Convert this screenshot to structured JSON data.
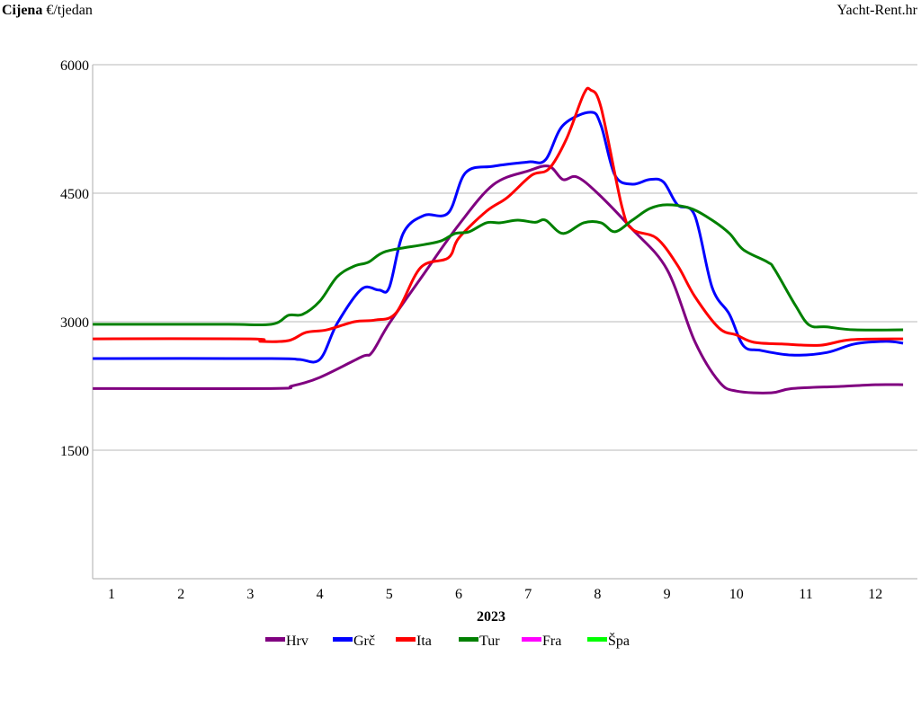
{
  "chart_data": {
    "type": "line",
    "ylabel_bold": "Cijena",
    "ylabel_unit": "€/tjedan",
    "watermark": "Yacht-Rent.hr",
    "xlabel": "2023",
    "x_ticks": [
      "1",
      "2",
      "3",
      "4",
      "5",
      "6",
      "7",
      "8",
      "9",
      "10",
      "11",
      "12"
    ],
    "y_ticks": [
      1500,
      3000,
      4500,
      6000
    ],
    "ylim": [
      0,
      6000
    ],
    "xlim": [
      0.73,
      12.6
    ],
    "grid": "horizontal",
    "legend_position": "bottom",
    "series": [
      {
        "name": "Hrv",
        "color": "#800080",
        "points": [
          [
            0.73,
            2220
          ],
          [
            3.3,
            2220
          ],
          [
            3.6,
            2250
          ],
          [
            4.0,
            2350
          ],
          [
            4.6,
            2590
          ],
          [
            4.75,
            2640
          ],
          [
            5.0,
            2980
          ],
          [
            5.5,
            3560
          ],
          [
            6.0,
            4130
          ],
          [
            6.5,
            4600
          ],
          [
            7.0,
            4760
          ],
          [
            7.3,
            4815
          ],
          [
            7.5,
            4660
          ],
          [
            7.7,
            4690
          ],
          [
            8.0,
            4500
          ],
          [
            8.5,
            4080
          ],
          [
            9.0,
            3610
          ],
          [
            9.4,
            2770
          ],
          [
            9.75,
            2300
          ],
          [
            10.0,
            2190
          ],
          [
            10.5,
            2170
          ],
          [
            10.8,
            2220
          ],
          [
            11.5,
            2245
          ],
          [
            12.0,
            2265
          ],
          [
            12.4,
            2265
          ]
        ]
      },
      {
        "name": "Grč",
        "color": "#0000ff",
        "points": [
          [
            0.73,
            2570
          ],
          [
            3.3,
            2570
          ],
          [
            3.7,
            2560
          ],
          [
            4.0,
            2560
          ],
          [
            4.25,
            2980
          ],
          [
            4.6,
            3380
          ],
          [
            4.85,
            3370
          ],
          [
            5.0,
            3400
          ],
          [
            5.2,
            4030
          ],
          [
            5.5,
            4240
          ],
          [
            5.85,
            4270
          ],
          [
            6.1,
            4740
          ],
          [
            6.5,
            4815
          ],
          [
            7.0,
            4865
          ],
          [
            7.25,
            4890
          ],
          [
            7.5,
            5290
          ],
          [
            7.9,
            5445
          ],
          [
            8.05,
            5290
          ],
          [
            8.25,
            4710
          ],
          [
            8.5,
            4605
          ],
          [
            8.75,
            4660
          ],
          [
            8.95,
            4630
          ],
          [
            9.15,
            4365
          ],
          [
            9.4,
            4240
          ],
          [
            9.65,
            3400
          ],
          [
            9.9,
            3085
          ],
          [
            10.1,
            2720
          ],
          [
            10.35,
            2665
          ],
          [
            10.8,
            2610
          ],
          [
            11.3,
            2640
          ],
          [
            11.7,
            2740
          ],
          [
            12.15,
            2770
          ],
          [
            12.4,
            2750
          ]
        ]
      },
      {
        "name": "Ita",
        "color": "#ff0000",
        "points": [
          [
            0.73,
            2800
          ],
          [
            3.0,
            2800
          ],
          [
            3.15,
            2770
          ],
          [
            3.55,
            2780
          ],
          [
            3.8,
            2875
          ],
          [
            4.1,
            2905
          ],
          [
            4.5,
            3000
          ],
          [
            4.8,
            3020
          ],
          [
            5.1,
            3105
          ],
          [
            5.45,
            3630
          ],
          [
            5.85,
            3745
          ],
          [
            6.0,
            3975
          ],
          [
            6.4,
            4290
          ],
          [
            6.7,
            4450
          ],
          [
            7.05,
            4710
          ],
          [
            7.3,
            4785
          ],
          [
            7.55,
            5130
          ],
          [
            7.8,
            5655
          ],
          [
            7.9,
            5705
          ],
          [
            8.05,
            5500
          ],
          [
            8.35,
            4345
          ],
          [
            8.5,
            4080
          ],
          [
            8.85,
            3975
          ],
          [
            9.15,
            3660
          ],
          [
            9.4,
            3295
          ],
          [
            9.75,
            2925
          ],
          [
            10.0,
            2845
          ],
          [
            10.25,
            2760
          ],
          [
            10.65,
            2740
          ],
          [
            11.2,
            2725
          ],
          [
            11.65,
            2790
          ],
          [
            12.4,
            2800
          ]
        ]
      },
      {
        "name": "Tur",
        "color": "#008000",
        "points": [
          [
            0.73,
            2970
          ],
          [
            2.6,
            2970
          ],
          [
            3.3,
            2970
          ],
          [
            3.55,
            3075
          ],
          [
            3.75,
            3085
          ],
          [
            4.0,
            3240
          ],
          [
            4.25,
            3525
          ],
          [
            4.5,
            3650
          ],
          [
            4.7,
            3695
          ],
          [
            4.95,
            3820
          ],
          [
            5.5,
            3900
          ],
          [
            5.75,
            3945
          ],
          [
            5.95,
            4030
          ],
          [
            6.15,
            4050
          ],
          [
            6.4,
            4155
          ],
          [
            6.6,
            4155
          ],
          [
            6.85,
            4185
          ],
          [
            7.1,
            4160
          ],
          [
            7.25,
            4185
          ],
          [
            7.5,
            4030
          ],
          [
            7.8,
            4155
          ],
          [
            8.05,
            4155
          ],
          [
            8.25,
            4050
          ],
          [
            8.5,
            4185
          ],
          [
            8.75,
            4320
          ],
          [
            9.0,
            4365
          ],
          [
            9.35,
            4320
          ],
          [
            9.65,
            4185
          ],
          [
            9.9,
            4030
          ],
          [
            10.1,
            3840
          ],
          [
            10.45,
            3695
          ],
          [
            10.55,
            3610
          ],
          [
            10.85,
            3190
          ],
          [
            11.05,
            2960
          ],
          [
            11.3,
            2940
          ],
          [
            11.7,
            2905
          ],
          [
            12.4,
            2905
          ]
        ]
      },
      {
        "name": "Fra",
        "color": "#ff00ff",
        "points": []
      },
      {
        "name": "Špa",
        "color": "#00ff00",
        "points": []
      }
    ]
  }
}
